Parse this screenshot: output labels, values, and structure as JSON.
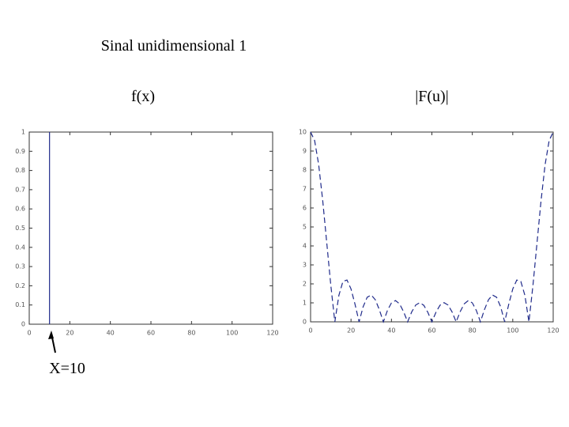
{
  "title": "Sinal unidimensional 1",
  "chart_data": [
    {
      "type": "line",
      "title": "f(x)",
      "annotation": "X=10",
      "x": [
        10,
        10
      ],
      "values": [
        0,
        1
      ],
      "color": "#1f2a8a",
      "dashed": false,
      "xlim": [
        0,
        120
      ],
      "xticks": [
        0,
        20,
        40,
        60,
        80,
        100,
        120
      ],
      "ylim": [
        0,
        1
      ],
      "yticks": [
        0,
        0.1,
        0.2,
        0.3,
        0.4,
        0.5,
        0.6,
        0.7,
        0.8,
        0.9,
        1
      ]
    },
    {
      "type": "line",
      "title": "|F(u)|",
      "x": [
        0,
        2,
        4,
        6,
        8,
        10,
        12,
        14,
        16,
        18,
        20,
        22,
        24,
        26,
        28,
        30,
        32,
        34,
        36,
        38,
        40,
        42,
        44,
        46,
        48,
        50,
        52,
        54,
        56,
        58,
        60,
        62,
        64,
        66,
        68,
        70,
        72,
        74,
        76,
        78,
        80,
        82,
        84,
        86,
        88,
        90,
        92,
        94,
        96,
        98,
        100,
        102,
        104,
        106,
        108,
        110,
        112,
        114,
        116,
        118,
        120
      ],
      "values": [
        10,
        9.553,
        8.285,
        6.393,
        4.165,
        1.932,
        0,
        1.395,
        2.129,
        2.203,
        1.732,
        0.918,
        0,
        0.795,
        1.294,
        1.414,
        1.165,
        0.643,
        0,
        0.596,
        1.0,
        1.122,
        0.948,
        0.536,
        0,
        0.518,
        0.885,
        1.012,
        0.871,
        0.501,
        0,
        0.501,
        0.871,
        1.012,
        0.885,
        0.518,
        0,
        0.536,
        0.948,
        1.122,
        1.0,
        0.596,
        0,
        0.643,
        1.165,
        1.414,
        1.294,
        0.795,
        0,
        0.918,
        1.732,
        2.203,
        2.129,
        1.395,
        0,
        1.932,
        4.165,
        6.393,
        8.285,
        9.553,
        10
      ],
      "color": "#1f2a8a",
      "dashed": true,
      "xlim": [
        0,
        120
      ],
      "xticks": [
        0,
        20,
        40,
        60,
        80,
        100,
        120
      ],
      "ylim": [
        0,
        10
      ],
      "yticks": [
        0,
        1,
        2,
        3,
        4,
        5,
        6,
        7,
        8,
        9,
        10
      ]
    }
  ]
}
